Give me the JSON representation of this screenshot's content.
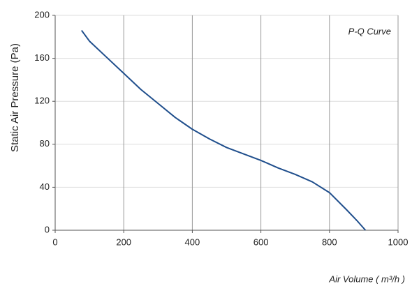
{
  "chart_data": {
    "type": "line",
    "title": "P-Q Curve",
    "x_label": "Air Volume ( m³/h )",
    "y_label": "Static Air Pressure  (Pa)",
    "x": [
      77,
      100,
      150,
      200,
      250,
      300,
      350,
      400,
      450,
      500,
      550,
      600,
      650,
      700,
      750,
      800,
      850,
      880,
      905
    ],
    "series": [
      {
        "name": "P-Q Curve",
        "color": "#1f4e8c",
        "values": [
          186,
          176,
          161,
          146,
          131,
          118,
          105,
          94,
          85,
          77,
          71,
          65,
          58,
          52,
          45,
          35,
          19,
          9,
          0
        ]
      }
    ],
    "xlim": [
      0,
      1000
    ],
    "xticks": [
      0,
      200,
      400,
      600,
      800,
      1000
    ],
    "ylim": [
      0,
      200
    ],
    "yticks": [
      0,
      40,
      80,
      120,
      160,
      200
    ],
    "grid": true
  }
}
